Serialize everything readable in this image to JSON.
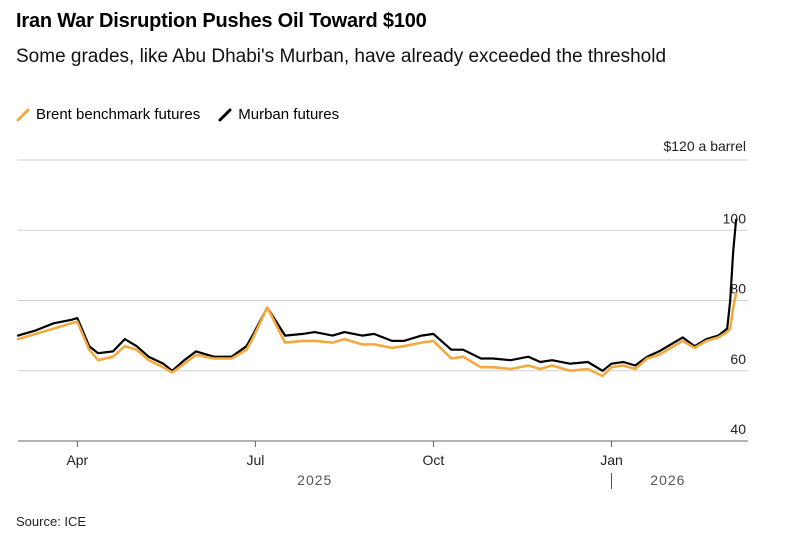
{
  "colors": {
    "brent": "#f4a93f",
    "murban": "#000000",
    "grid": "#cfcfcf"
  },
  "chart_data": {
    "type": "line",
    "title": "Iran War Disruption Pushes Oil Toward $100",
    "subtitle": "Some grades, like Abu Dhabi's Murban, have already exceeded the threshold",
    "source": "Source: ICE",
    "xlabel": "",
    "ylabel": "$120 a barrel",
    "ylim": [
      40,
      120
    ],
    "yticks": [
      40,
      60,
      80,
      100
    ],
    "ytick_labels": [
      "40",
      "60",
      "80",
      "100"
    ],
    "top_label": "$120 a barrel",
    "xlim": [
      0,
      12.3
    ],
    "x_unit": "months since 2025-03-01",
    "xtick_values": [
      1,
      4,
      7,
      10
    ],
    "xtick_labels": [
      "Apr",
      "Jul",
      "Oct",
      "Jan"
    ],
    "year_labels": [
      {
        "label": "2025",
        "x": 5.0
      },
      {
        "label": "2026",
        "x": 10.95
      }
    ],
    "year_divider_x": 10,
    "legend_position": "top-left",
    "series": [
      {
        "name": "Brent benchmark futures",
        "key": "brent",
        "x": [
          0.0,
          0.3,
          0.6,
          0.9,
          1.0,
          1.2,
          1.35,
          1.6,
          1.8,
          2.0,
          2.2,
          2.45,
          2.6,
          2.8,
          3.0,
          3.3,
          3.6,
          3.85,
          3.95,
          4.2,
          4.5,
          4.8,
          5.0,
          5.3,
          5.5,
          5.8,
          6.0,
          6.3,
          6.5,
          6.8,
          7.0,
          7.3,
          7.5,
          7.8,
          8.0,
          8.3,
          8.6,
          8.8,
          9.0,
          9.3,
          9.6,
          9.85,
          10.0,
          10.2,
          10.4,
          10.6,
          10.8,
          11.0,
          11.2,
          11.4,
          11.6,
          11.8,
          11.95,
          12.0,
          12.05,
          12.1
        ],
        "y": [
          69,
          70.5,
          72,
          73.5,
          74,
          66,
          63,
          64,
          67,
          66,
          63,
          61,
          59.5,
          62,
          64.5,
          63.5,
          63.5,
          66,
          69,
          78,
          68,
          68.5,
          68.5,
          68,
          69,
          67.5,
          67.5,
          66.5,
          67,
          68,
          68.5,
          63.5,
          64,
          61,
          61,
          60.5,
          61.5,
          60.5,
          61.5,
          60,
          60.5,
          58.5,
          61,
          61.5,
          60.5,
          63.5,
          64.5,
          66.5,
          68.5,
          66.5,
          68.5,
          69.5,
          71,
          72,
          78,
          82
        ]
      },
      {
        "name": "Murban futures",
        "key": "murban",
        "x": [
          0.0,
          0.3,
          0.6,
          0.9,
          1.0,
          1.2,
          1.35,
          1.6,
          1.8,
          2.0,
          2.2,
          2.45,
          2.6,
          2.8,
          3.0,
          3.3,
          3.6,
          3.85,
          3.95,
          4.2,
          4.5,
          4.8,
          5.0,
          5.3,
          5.5,
          5.8,
          6.0,
          6.3,
          6.5,
          6.8,
          7.0,
          7.3,
          7.5,
          7.8,
          8.0,
          8.3,
          8.6,
          8.8,
          9.0,
          9.3,
          9.6,
          9.85,
          10.0,
          10.2,
          10.4,
          10.6,
          10.8,
          11.0,
          11.2,
          11.4,
          11.6,
          11.8,
          11.95,
          12.0,
          12.05,
          12.1
        ],
        "y": [
          70,
          71.5,
          73.5,
          74.5,
          75,
          67,
          65,
          65.5,
          69,
          67,
          64,
          62,
          60,
          63,
          65.5,
          64,
          64,
          67,
          70,
          78,
          70,
          70.5,
          71,
          70,
          71,
          70,
          70.5,
          68.5,
          68.5,
          70,
          70.5,
          66,
          66,
          63.5,
          63.5,
          63,
          64,
          62.5,
          63,
          62,
          62.5,
          60,
          62,
          62.5,
          61.5,
          64,
          65.5,
          67.5,
          69.5,
          67,
          69,
          70,
          72,
          80,
          94,
          103
        ]
      }
    ]
  }
}
